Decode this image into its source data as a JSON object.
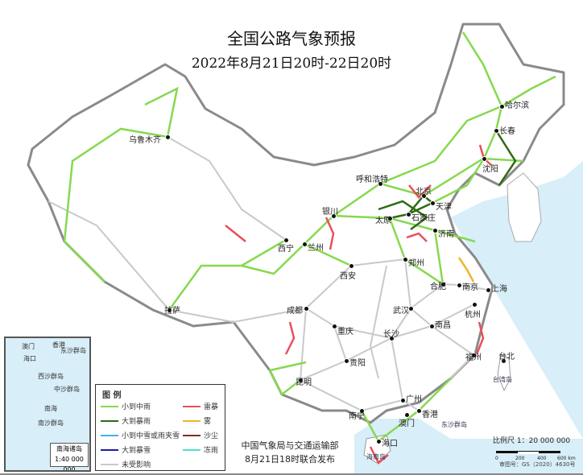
{
  "title": "全国公路气象预报",
  "subtitle": "2022年8月21日20时-22日20时",
  "colors": {
    "sea": "#d8eef8",
    "land": "#ffffff",
    "border": "#8a8a8a"
  },
  "legend": {
    "heading": "图 例",
    "items": [
      {
        "label": "小到中雨",
        "color": "#86d94e"
      },
      {
        "label": "大到暴雨",
        "color": "#2f6a14"
      },
      {
        "label": "小到中雪或雨夹雪",
        "color": "#3db6ea"
      },
      {
        "label": "大到暴雪",
        "color": "#1c1ca8"
      },
      {
        "label": "未受影响",
        "color": "#c9c9c9"
      },
      {
        "label": "雷暴",
        "color": "#e8505b"
      },
      {
        "label": "雾",
        "color": "#f0b429"
      },
      {
        "label": "沙尘",
        "color": "#8b2a1a"
      },
      {
        "label": "冻雨",
        "color": "#4fe0c8"
      }
    ]
  },
  "issuer": {
    "line1": "中国气象局与交通运输部",
    "line2": "8月21日18时联合发布"
  },
  "scale": {
    "label": "比例尺 1：20 000 000",
    "ticks": [
      "0",
      "200",
      "400",
      "600 km"
    ]
  },
  "map_approval": "审图号：GS（2020）4630号",
  "inset": {
    "title": "南海诸岛",
    "scale": "1:40 000 000",
    "labels": [
      "海口",
      "澳门",
      "香港",
      "东沙群岛",
      "西沙群岛",
      "中沙群岛",
      "南沙群岛",
      "南海"
    ]
  },
  "cities": [
    {
      "name": "乌鲁木齐"
    },
    {
      "name": "哈尔滨"
    },
    {
      "name": "长春"
    },
    {
      "name": "沈阳"
    },
    {
      "name": "呼和浩特"
    },
    {
      "name": "北京"
    },
    {
      "name": "天津"
    },
    {
      "name": "石家庄"
    },
    {
      "name": "太原"
    },
    {
      "name": "济南"
    },
    {
      "name": "银川"
    },
    {
      "name": "兰州"
    },
    {
      "name": "西宁"
    },
    {
      "name": "西安"
    },
    {
      "name": "郑州"
    },
    {
      "name": "合肥"
    },
    {
      "name": "南京"
    },
    {
      "name": "上海"
    },
    {
      "name": "杭州"
    },
    {
      "name": "武汉"
    },
    {
      "name": "成都"
    },
    {
      "name": "重庆"
    },
    {
      "name": "长沙"
    },
    {
      "name": "南昌"
    },
    {
      "name": "福州"
    },
    {
      "name": "台北"
    },
    {
      "name": "贵阳"
    },
    {
      "name": "昆明"
    },
    {
      "name": "南宁"
    },
    {
      "name": "广州"
    },
    {
      "name": "香港"
    },
    {
      "name": "澳门"
    },
    {
      "name": "海口"
    },
    {
      "name": "拉萨"
    }
  ],
  "regions": [
    {
      "name": "台湾岛"
    },
    {
      "name": "东沙群岛"
    },
    {
      "name": "海南岛"
    }
  ]
}
